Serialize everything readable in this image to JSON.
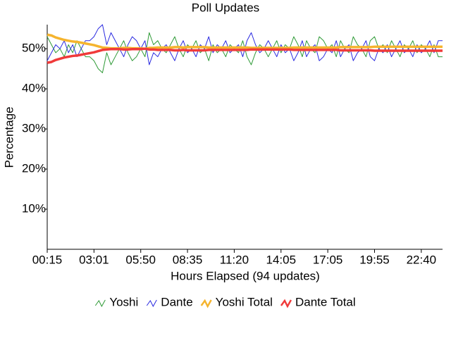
{
  "chart_data": {
    "type": "line",
    "title": "Poll Updates",
    "x_label": "Hours Elapsed (94 updates)",
    "y_label": "Percentage",
    "categories": [
      "00:15",
      null,
      null,
      null,
      null,
      null,
      null,
      null,
      null,
      null,
      null,
      "03:01",
      null,
      null,
      null,
      null,
      null,
      null,
      null,
      null,
      null,
      null,
      "05:50",
      null,
      null,
      null,
      null,
      null,
      null,
      null,
      null,
      null,
      null,
      "08:35",
      null,
      null,
      null,
      null,
      null,
      null,
      null,
      null,
      null,
      null,
      "11:20",
      null,
      null,
      null,
      null,
      null,
      null,
      null,
      null,
      null,
      null,
      "14:05",
      null,
      null,
      null,
      null,
      null,
      null,
      null,
      null,
      null,
      null,
      "17:05",
      null,
      null,
      null,
      null,
      null,
      null,
      null,
      null,
      null,
      null,
      "19:55",
      null,
      null,
      null,
      null,
      null,
      null,
      null,
      null,
      null,
      null,
      "22:40",
      null,
      null,
      null,
      null,
      null
    ],
    "ylim": [
      0,
      56
    ],
    "yticks": [
      {
        "value": 10,
        "label": "10%"
      },
      {
        "value": 20,
        "label": "20%"
      },
      {
        "value": 30,
        "label": "30%"
      },
      {
        "value": 40,
        "label": "40%"
      },
      {
        "value": 50,
        "label": "50%"
      }
    ],
    "grid": false,
    "legend": "bottom",
    "series": [
      {
        "name": "Yoshi",
        "color": "#2e9a36",
        "width": 1,
        "values": [
          53,
          51,
          49,
          50,
          48,
          51,
          49,
          52,
          50,
          48,
          48,
          47,
          45,
          44,
          49,
          46,
          48,
          50,
          52,
          49,
          47,
          48,
          50,
          48,
          54,
          51,
          52,
          50,
          49,
          51,
          53,
          50,
          48,
          51,
          50,
          52,
          49,
          50,
          47,
          51,
          49,
          50,
          48,
          51,
          50,
          49,
          52,
          48,
          46,
          49,
          51,
          50,
          48,
          50,
          52,
          49,
          51,
          50,
          53,
          51,
          48,
          52,
          50,
          49,
          53,
          52,
          50,
          51,
          48,
          52,
          50,
          49,
          53,
          51,
          50,
          48,
          52,
          53,
          50,
          51,
          49,
          52,
          50,
          48,
          51,
          50,
          52,
          49,
          51,
          50,
          48,
          51,
          48,
          48
        ]
      },
      {
        "name": "Dante",
        "color": "#2a2ae0",
        "width": 1,
        "values": [
          47,
          49,
          51,
          50,
          52,
          49,
          51,
          48,
          50,
          52,
          52,
          53,
          55,
          56,
          51,
          54,
          52,
          50,
          48,
          51,
          53,
          52,
          50,
          52,
          46,
          49,
          48,
          50,
          51,
          49,
          47,
          50,
          52,
          49,
          50,
          48,
          51,
          50,
          53,
          49,
          51,
          50,
          52,
          49,
          50,
          51,
          48,
          52,
          54,
          51,
          49,
          50,
          52,
          50,
          48,
          51,
          49,
          50,
          47,
          49,
          52,
          48,
          50,
          51,
          47,
          48,
          50,
          49,
          52,
          48,
          50,
          51,
          47,
          49,
          50,
          52,
          48,
          47,
          50,
          49,
          51,
          48,
          50,
          52,
          49,
          50,
          48,
          51,
          49,
          50,
          52,
          49,
          52,
          52
        ]
      },
      {
        "name": "Yoshi Total",
        "color": "#f5b42e",
        "width": 3.5,
        "values": [
          53.5,
          53.3,
          52.8,
          52.5,
          52.2,
          52,
          51.8,
          51.7,
          51.5,
          51.3,
          51.1,
          50.9,
          50.6,
          50.3,
          50.2,
          50.1,
          50.1,
          50.1,
          50.2,
          50.2,
          50.1,
          50.1,
          50.1,
          50,
          50.2,
          50.2,
          50.3,
          50.3,
          50.3,
          50.3,
          50.4,
          50.4,
          50.3,
          50.4,
          50.4,
          50.4,
          50.4,
          50.4,
          50.3,
          50.3,
          50.3,
          50.3,
          50.3,
          50.3,
          50.3,
          50.3,
          50.3,
          50.3,
          50.2,
          50.2,
          50.2,
          50.2,
          50.2,
          50.2,
          50.2,
          50.2,
          50.2,
          50.2,
          50.3,
          50.3,
          50.3,
          50.3,
          50.3,
          50.3,
          50.3,
          50.3,
          50.3,
          50.3,
          50.3,
          50.4,
          50.4,
          50.4,
          50.4,
          50.4,
          50.4,
          50.4,
          50.4,
          50.5,
          50.5,
          50.5,
          50.5,
          50.5,
          50.5,
          50.5,
          50.5,
          50.5,
          50.5,
          50.5,
          50.5,
          50.5,
          50.5,
          50.5,
          50.5,
          50.5
        ]
      },
      {
        "name": "Dante Total",
        "color": "#f03a3a",
        "width": 3.5,
        "values": [
          46.5,
          46.7,
          47.2,
          47.5,
          47.8,
          48,
          48.2,
          48.3,
          48.5,
          48.7,
          48.9,
          49.1,
          49.4,
          49.7,
          49.8,
          49.9,
          49.9,
          49.9,
          49.8,
          49.8,
          49.9,
          49.9,
          49.9,
          50,
          49.8,
          49.8,
          49.7,
          49.7,
          49.7,
          49.7,
          49.6,
          49.6,
          49.7,
          49.6,
          49.6,
          49.6,
          49.6,
          49.6,
          49.7,
          49.7,
          49.7,
          49.7,
          49.7,
          49.7,
          49.7,
          49.7,
          49.7,
          49.7,
          49.8,
          49.8,
          49.8,
          49.8,
          49.8,
          49.8,
          49.8,
          49.8,
          49.8,
          49.8,
          49.7,
          49.7,
          49.7,
          49.7,
          49.7,
          49.7,
          49.7,
          49.7,
          49.7,
          49.7,
          49.7,
          49.6,
          49.6,
          49.6,
          49.6,
          49.6,
          49.6,
          49.6,
          49.6,
          49.5,
          49.5,
          49.5,
          49.5,
          49.5,
          49.5,
          49.5,
          49.5,
          49.5,
          49.5,
          49.5,
          49.5,
          49.5,
          49.5,
          49.5,
          49.5,
          49.5
        ]
      }
    ]
  }
}
